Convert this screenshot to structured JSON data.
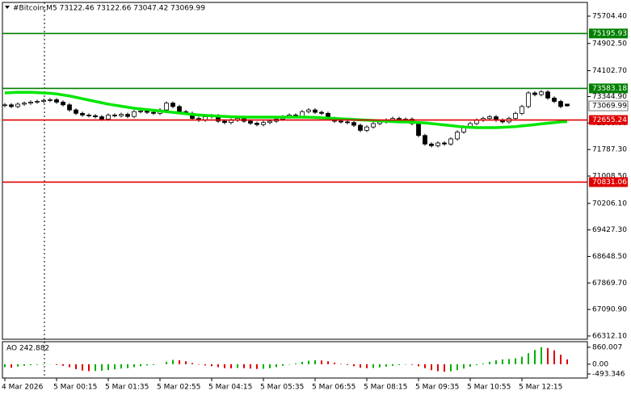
{
  "chart_data": [
    {
      "type": "candlestick",
      "title": "#Bitcoin,M5  73122.46 73122.66 73047.42 73069.99",
      "categories": [
        "4 Mar 2026",
        null,
        null,
        null,
        null,
        null,
        null,
        null,
        "5 Mar 00:15",
        null,
        null,
        null,
        null,
        null,
        null,
        null,
        "5 Mar 01:35",
        null,
        null,
        null,
        null,
        null,
        null,
        null,
        "5 Mar 02:55",
        null,
        null,
        null,
        null,
        null,
        null,
        null,
        "5 Mar 04:15",
        null,
        null,
        null,
        null,
        null,
        null,
        null,
        "5 Mar 05:35",
        null,
        null,
        null,
        null,
        null,
        null,
        null,
        "5 Mar 06:55",
        null,
        null,
        null,
        null,
        null,
        null,
        null,
        "5 Mar 08:15",
        null,
        null,
        null,
        null,
        null,
        null,
        null,
        "5 Mar 09:35",
        null,
        null,
        null,
        null,
        null,
        null,
        null,
        "5 Mar 10:55",
        null,
        null,
        null,
        null,
        null,
        null,
        null,
        "5 Mar 12:15",
        null,
        null,
        null,
        null,
        null,
        null,
        null
      ],
      "open": [
        73080,
        73100,
        73050,
        73120,
        73150,
        73180,
        73200,
        73230,
        73250,
        73180,
        73100,
        72950,
        72850,
        72800,
        72780,
        72750,
        72680,
        72800,
        72780,
        72820,
        72760,
        72900,
        72920,
        72880,
        72850,
        72950,
        73150,
        73050,
        72900,
        72850,
        72700,
        72650,
        72750,
        72780,
        72620,
        72580,
        72650,
        72700,
        72620,
        72560,
        72520,
        72580,
        72620,
        72680,
        72750,
        72800,
        72760,
        72900,
        72950,
        72880,
        72850,
        72700,
        72620,
        72600,
        72580,
        72500,
        72350,
        72450,
        72550,
        72600,
        72650,
        72700,
        72650,
        72680,
        72550,
        72200,
        71950,
        71900,
        71980,
        71950,
        72100,
        72300,
        72450,
        72550,
        72650,
        72700,
        72750,
        72650,
        72600,
        72700,
        72850,
        73050,
        73450,
        73400,
        73480,
        73300,
        73200,
        73122.46
      ],
      "high": [
        73150,
        73150,
        73170,
        73200,
        73230,
        73250,
        73280,
        73300,
        73300,
        73230,
        73150,
        73000,
        72900,
        72850,
        72830,
        72800,
        72850,
        72850,
        72870,
        72870,
        72950,
        72970,
        72970,
        72930,
        73000,
        73200,
        73200,
        73100,
        72950,
        72900,
        72750,
        72800,
        72830,
        72830,
        72670,
        72700,
        72750,
        72750,
        72670,
        72610,
        72630,
        72670,
        72730,
        72800,
        72850,
        72850,
        72950,
        73000,
        73000,
        72930,
        72900,
        72750,
        72670,
        72650,
        72630,
        72550,
        72500,
        72600,
        72650,
        72700,
        72750,
        72750,
        72730,
        72730,
        72600,
        72250,
        72000,
        72030,
        72030,
        72150,
        72350,
        72500,
        72600,
        72700,
        72750,
        72800,
        72800,
        72700,
        72750,
        72900,
        73100,
        73500,
        73500,
        73530,
        73530,
        73350,
        73250,
        73122.66
      ],
      "low": [
        73030,
        73000,
        73000,
        73070,
        73100,
        73130,
        73150,
        73180,
        73130,
        73050,
        72900,
        72800,
        72750,
        72730,
        72700,
        72630,
        72630,
        72730,
        72730,
        72710,
        72710,
        72850,
        72830,
        72800,
        72800,
        72900,
        73000,
        72850,
        72800,
        72650,
        72600,
        72600,
        72700,
        72570,
        72530,
        72530,
        72600,
        72570,
        72510,
        72470,
        72470,
        72530,
        72570,
        72630,
        72700,
        72710,
        72710,
        72850,
        72830,
        72800,
        72650,
        72570,
        72550,
        72530,
        72450,
        72300,
        72300,
        72400,
        72500,
        72550,
        72600,
        72600,
        72600,
        72500,
        72150,
        71900,
        71850,
        71850,
        71900,
        71900,
        72050,
        72250,
        72400,
        72500,
        72600,
        72650,
        72600,
        72550,
        72550,
        72650,
        72800,
        73000,
        73350,
        73350,
        73250,
        73150,
        73000,
        73047.42
      ],
      "close": [
        73100,
        73050,
        73120,
        73150,
        73180,
        73200,
        73230,
        73250,
        73180,
        73100,
        72950,
        72850,
        72800,
        72780,
        72750,
        72680,
        72800,
        72780,
        72820,
        72760,
        72900,
        72920,
        72880,
        72850,
        72950,
        73150,
        73050,
        72900,
        72850,
        72700,
        72650,
        72750,
        72780,
        72620,
        72580,
        72650,
        72700,
        72620,
        72560,
        72520,
        72580,
        72620,
        72680,
        72750,
        72800,
        72760,
        72900,
        72950,
        72880,
        72850,
        72700,
        72620,
        72600,
        72580,
        72500,
        72350,
        72450,
        72550,
        72600,
        72650,
        72700,
        72650,
        72680,
        72550,
        72200,
        71950,
        71900,
        71980,
        71950,
        72100,
        72300,
        72450,
        72550,
        72650,
        72700,
        72750,
        72650,
        72600,
        72700,
        72850,
        73050,
        73450,
        73400,
        73480,
        73300,
        73200,
        73050,
        73069.99
      ],
      "ma": {
        "color": "#00e600",
        "values": [
          73450,
          73460,
          73470,
          73470,
          73470,
          73460,
          73450,
          73440,
          73420,
          73390,
          73360,
          73320,
          73280,
          73240,
          73200,
          73160,
          73120,
          73090,
          73060,
          73030,
          73000,
          72980,
          72960,
          72940,
          72920,
          72900,
          72880,
          72860,
          72840,
          72820,
          72800,
          72790,
          72780,
          72770,
          72760,
          72750,
          72745,
          72740,
          72740,
          72740,
          72740,
          72740,
          72740,
          72740,
          72740,
          72740,
          72740,
          72735,
          72730,
          72720,
          72710,
          72700,
          72690,
          72680,
          72670,
          72660,
          72650,
          72640,
          72630,
          72620,
          72610,
          72600,
          72600,
          72590,
          72580,
          72570,
          72550,
          72530,
          72510,
          72490,
          72470,
          72450,
          72440,
          72430,
          72430,
          72430,
          72430,
          72440,
          72450,
          72460,
          72480,
          72500,
          72520,
          72540,
          72560,
          72580,
          72600,
          72610
        ]
      },
      "levels": [
        {
          "value": 75195.93,
          "color": "#008000"
        },
        {
          "value": 73583.18,
          "color": "#008000"
        },
        {
          "value": 72655.24,
          "color": "#e00000"
        },
        {
          "value": 70831.06,
          "color": "#e00000"
        }
      ],
      "current": 73069.99,
      "ylim": [
        66216,
        76060
      ],
      "yticks": [
        {
          "value": 75704.4,
          "label": "75704.40"
        },
        {
          "value": 74902.5,
          "label": "74902.50"
        },
        {
          "value": 74102.7,
          "label": "74102.70"
        },
        {
          "value": 73344.9,
          "label": "73344.90"
        },
        {
          "value": 72566,
          "label": "72566.00"
        },
        {
          "value": 71787.3,
          "label": "71787.30"
        },
        {
          "value": 71008.5,
          "label": "71008.50"
        },
        {
          "value": 70206.1,
          "label": "70206.10"
        },
        {
          "value": 69427.3,
          "label": "69427.30"
        },
        {
          "value": 68648.5,
          "label": "68648.50"
        },
        {
          "value": 67869.7,
          "label": "67869.70"
        },
        {
          "value": 67090.9,
          "label": "67090.90"
        },
        {
          "value": 66312.1,
          "label": "66312.10"
        }
      ]
    },
    {
      "type": "bar",
      "title": "AO 242.882",
      "values": [
        -150,
        -180,
        -120,
        -80,
        -50,
        -30,
        -20,
        -10,
        -40,
        -80,
        -150,
        -250,
        -320,
        -350,
        -340,
        -330,
        -300,
        -260,
        -220,
        -200,
        -150,
        -100,
        -60,
        -40,
        0,
        120,
        220,
        200,
        150,
        60,
        -20,
        -60,
        -100,
        -150,
        -200,
        -210,
        -190,
        -200,
        -220,
        -240,
        -230,
        -200,
        -150,
        -80,
        -20,
        40,
        120,
        180,
        200,
        190,
        150,
        80,
        20,
        -40,
        -100,
        -180,
        -200,
        -190,
        -160,
        -120,
        -80,
        -40,
        -20,
        -30,
        -100,
        -200,
        -300,
        -350,
        -380,
        -360,
        -300,
        -220,
        -130,
        -40,
        40,
        120,
        200,
        240,
        260,
        300,
        380,
        560,
        720,
        860,
        820,
        700,
        480,
        242.882
      ],
      "up_color": "#00b000",
      "down_color": "#e00000",
      "ylim": [
        -700,
        1100
      ],
      "yticks": [
        860.007,
        {
          "value": 0,
          "label": "0.00"
        },
        -493.346
      ]
    }
  ]
}
